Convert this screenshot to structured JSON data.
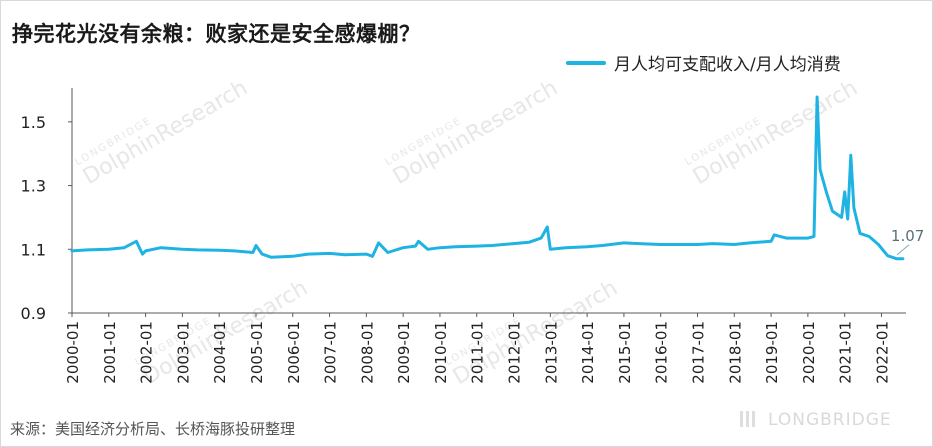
{
  "title": "挣完花光没有余粮：败家还是安全感爆棚？",
  "source": "来源：美国经济分析局、长桥海豚投研整理",
  "brand": "LONGBRIDGE",
  "watermark": {
    "main": "DolphinResearch",
    "small": "LONGBRIDGE"
  },
  "colors": {
    "series": "#1fb3e3",
    "axis": "#595959",
    "annotation": "#7fa8bf"
  },
  "chart_data": {
    "type": "line",
    "title": "挣完花光没有余粮：败家还是安全感爆棚？",
    "xlabel": "",
    "ylabel": "",
    "ylim": [
      0.9,
      1.6
    ],
    "yticks": [
      0.9,
      1.1,
      1.3,
      1.5
    ],
    "ytick_labels": [
      "0.9",
      "1.1",
      "1.3",
      "1.5"
    ],
    "xticks": [
      "2000-01",
      "2001-01",
      "2002-01",
      "2003-01",
      "2004-01",
      "2005-01",
      "2006-01",
      "2007-01",
      "2008-01",
      "2009-01",
      "2010-01",
      "2011-01",
      "2012-01",
      "2013-01",
      "2014-01",
      "2015-01",
      "2016-01",
      "2017-01",
      "2018-01",
      "2019-01",
      "2020-01",
      "2021-01",
      "2022-01"
    ],
    "legend": "top-right",
    "grid": false,
    "series": [
      {
        "name": "月人均可支配收入/月人均消费",
        "points": [
          [
            "2000-01",
            1.095
          ],
          [
            "2000-06",
            1.098
          ],
          [
            "2001-01",
            1.1
          ],
          [
            "2001-06",
            1.105
          ],
          [
            "2001-10",
            1.125
          ],
          [
            "2001-12",
            1.085
          ],
          [
            "2002-01",
            1.095
          ],
          [
            "2002-06",
            1.105
          ],
          [
            "2003-01",
            1.1
          ],
          [
            "2003-06",
            1.098
          ],
          [
            "2004-01",
            1.097
          ],
          [
            "2004-06",
            1.095
          ],
          [
            "2004-12",
            1.09
          ],
          [
            "2005-01",
            1.112
          ],
          [
            "2005-03",
            1.085
          ],
          [
            "2005-06",
            1.075
          ],
          [
            "2006-01",
            1.078
          ],
          [
            "2006-06",
            1.085
          ],
          [
            "2007-01",
            1.087
          ],
          [
            "2007-06",
            1.083
          ],
          [
            "2008-01",
            1.085
          ],
          [
            "2008-03",
            1.078
          ],
          [
            "2008-05",
            1.12
          ],
          [
            "2008-08",
            1.09
          ],
          [
            "2009-01",
            1.105
          ],
          [
            "2009-05",
            1.11
          ],
          [
            "2009-06",
            1.125
          ],
          [
            "2009-09",
            1.1
          ],
          [
            "2010-01",
            1.105
          ],
          [
            "2010-06",
            1.108
          ],
          [
            "2011-01",
            1.11
          ],
          [
            "2011-06",
            1.112
          ],
          [
            "2012-01",
            1.118
          ],
          [
            "2012-06",
            1.122
          ],
          [
            "2012-10",
            1.135
          ],
          [
            "2012-12",
            1.17
          ],
          [
            "2013-01",
            1.1
          ],
          [
            "2013-06",
            1.105
          ],
          [
            "2014-01",
            1.108
          ],
          [
            "2014-06",
            1.112
          ],
          [
            "2015-01",
            1.12
          ],
          [
            "2015-06",
            1.118
          ],
          [
            "2016-01",
            1.115
          ],
          [
            "2016-06",
            1.115
          ],
          [
            "2017-01",
            1.115
          ],
          [
            "2017-06",
            1.118
          ],
          [
            "2018-01",
            1.115
          ],
          [
            "2018-06",
            1.12
          ],
          [
            "2019-01",
            1.125
          ],
          [
            "2019-02",
            1.145
          ],
          [
            "2019-06",
            1.135
          ],
          [
            "2020-01",
            1.135
          ],
          [
            "2020-03",
            1.14
          ],
          [
            "2020-04",
            1.578
          ],
          [
            "2020-05",
            1.35
          ],
          [
            "2020-07",
            1.28
          ],
          [
            "2020-09",
            1.22
          ],
          [
            "2020-12",
            1.2
          ],
          [
            "2021-01",
            1.28
          ],
          [
            "2021-02",
            1.195
          ],
          [
            "2021-03",
            1.395
          ],
          [
            "2021-04",
            1.23
          ],
          [
            "2021-06",
            1.15
          ],
          [
            "2021-09",
            1.14
          ],
          [
            "2021-12",
            1.115
          ],
          [
            "2022-03",
            1.08
          ],
          [
            "2022-06",
            1.07
          ],
          [
            "2022-08",
            1.07
          ]
        ]
      }
    ],
    "annotation": {
      "text": "1.07",
      "x": "2022-08",
      "y": 1.07
    }
  }
}
